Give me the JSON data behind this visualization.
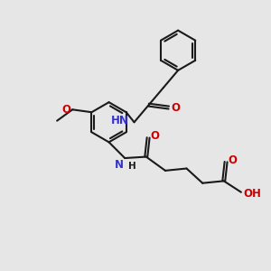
{
  "background_color": "#e6e6e6",
  "bond_color": "#1a1a1a",
  "N_color": "#3333cc",
  "O_color": "#cc0000",
  "line_width": 1.5,
  "figsize": [
    3.0,
    3.0
  ],
  "dpi": 100,
  "xlim": [
    0,
    10
  ],
  "ylim": [
    0,
    10
  ]
}
